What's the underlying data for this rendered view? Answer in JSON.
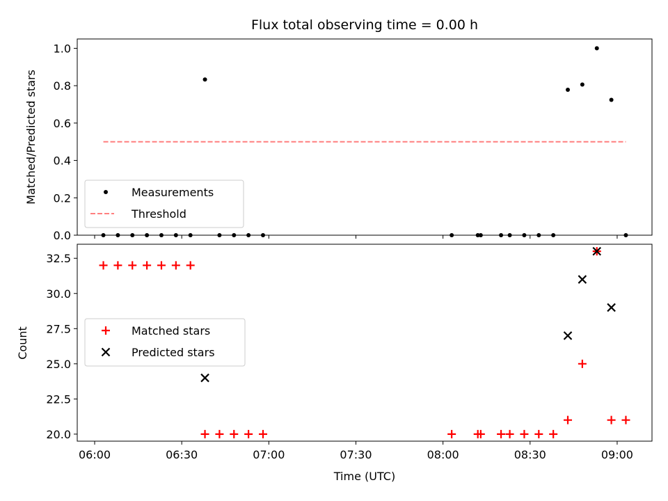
{
  "chart_data": [
    {
      "type": "scatter",
      "title": "Flux total observing time = 0.00 h",
      "xlabel": "",
      "ylabel": "Matched/Predicted stars",
      "xlim": [
        "05:54",
        "09:12"
      ],
      "ylim": [
        0,
        1.05
      ],
      "yticks": [
        {
          "v": 0.0,
          "label": "0.0"
        },
        {
          "v": 0.2,
          "label": "0.2"
        },
        {
          "v": 0.4,
          "label": "0.4"
        },
        {
          "v": 0.6,
          "label": "0.6"
        },
        {
          "v": 0.8,
          "label": "0.8"
        },
        {
          "v": 1.0,
          "label": "1.0"
        }
      ],
      "xticks": [
        "06:00",
        "06:30",
        "07:00",
        "07:30",
        "08:00",
        "08:30",
        "09:00"
      ],
      "grid": false,
      "legend_position": "lower-left",
      "series": [
        {
          "name": "Measurements",
          "marker": "dot",
          "color": "#000000",
          "x": [
            "06:03",
            "06:08",
            "06:13",
            "06:18",
            "06:23",
            "06:28",
            "06:33",
            "06:38",
            "06:43",
            "06:48",
            "06:53",
            "06:58",
            "08:03",
            "08:12",
            "08:13",
            "08:20",
            "08:23",
            "08:28",
            "08:33",
            "08:38",
            "08:43",
            "08:48",
            "08:53",
            "08:58",
            "09:03"
          ],
          "y": [
            0,
            0,
            0,
            0,
            0,
            0,
            0,
            0.833,
            0,
            0,
            0,
            0,
            0,
            0,
            0,
            0,
            0,
            0,
            0,
            0,
            0.778,
            0.806,
            1.0,
            0.724,
            0
          ]
        },
        {
          "name": "Threshold",
          "marker": "dashed-line",
          "color": "#ff7f7f",
          "x": [
            "06:03",
            "09:03"
          ],
          "y": [
            0.5,
            0.5
          ]
        }
      ]
    },
    {
      "type": "scatter",
      "title": "",
      "xlabel": "Time (UTC)",
      "ylabel": "Count",
      "xlim": [
        "05:54",
        "09:12"
      ],
      "ylim": [
        19.5,
        33.5
      ],
      "yticks": [
        {
          "v": 20.0,
          "label": "20.0"
        },
        {
          "v": 22.5,
          "label": "22.5"
        },
        {
          "v": 25.0,
          "label": "25.0"
        },
        {
          "v": 27.5,
          "label": "27.5"
        },
        {
          "v": 30.0,
          "label": "30.0"
        },
        {
          "v": 32.5,
          "label": "32.5"
        }
      ],
      "xticks": [
        "06:00",
        "06:30",
        "07:00",
        "07:30",
        "08:00",
        "08:30",
        "09:00"
      ],
      "grid": false,
      "legend_position": "center-left",
      "series": [
        {
          "name": "Matched stars",
          "marker": "plus",
          "color": "#ff0000",
          "x": [
            "06:03",
            "06:08",
            "06:13",
            "06:18",
            "06:23",
            "06:28",
            "06:33",
            "06:38",
            "06:43",
            "06:48",
            "06:53",
            "06:58",
            "08:03",
            "08:12",
            "08:13",
            "08:20",
            "08:23",
            "08:28",
            "08:33",
            "08:38",
            "08:43",
            "08:48",
            "08:53",
            "08:58",
            "09:03"
          ],
          "y": [
            32,
            32,
            32,
            32,
            32,
            32,
            32,
            20,
            20,
            20,
            20,
            20,
            20,
            20,
            20,
            20,
            20,
            20,
            20,
            20,
            21,
            25,
            33,
            21,
            21
          ]
        },
        {
          "name": "Predicted stars",
          "marker": "x",
          "color": "#000000",
          "x": [
            "06:38",
            "08:43",
            "08:48",
            "08:53",
            "08:58"
          ],
          "y": [
            24,
            27,
            31,
            33,
            29
          ]
        }
      ]
    }
  ]
}
